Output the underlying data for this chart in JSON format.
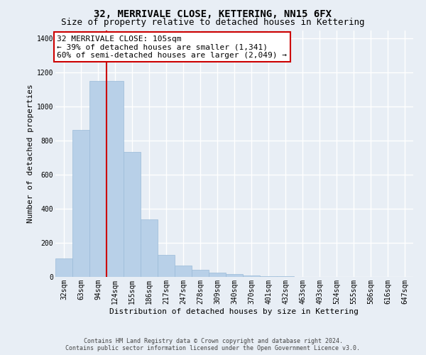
{
  "title": "32, MERRIVALE CLOSE, KETTERING, NN15 6FX",
  "subtitle": "Size of property relative to detached houses in Kettering",
  "xlabel": "Distribution of detached houses by size in Kettering",
  "ylabel": "Number of detached properties",
  "categories": [
    "32sqm",
    "63sqm",
    "94sqm",
    "124sqm",
    "155sqm",
    "186sqm",
    "217sqm",
    "247sqm",
    "278sqm",
    "309sqm",
    "340sqm",
    "370sqm",
    "401sqm",
    "432sqm",
    "463sqm",
    "493sqm",
    "524sqm",
    "555sqm",
    "586sqm",
    "616sqm",
    "647sqm"
  ],
  "values": [
    110,
    865,
    1150,
    1150,
    735,
    340,
    130,
    65,
    40,
    25,
    15,
    10,
    5,
    3,
    2,
    1,
    1,
    0,
    0,
    0,
    0
  ],
  "bar_color": "#b8d0e8",
  "bar_edgecolor": "#9bbbd8",
  "vline_color": "#cc0000",
  "vline_pos": 2.5,
  "annotation_lines": [
    "32 MERRIVALE CLOSE: 105sqm",
    "← 39% of detached houses are smaller (1,341)",
    "60% of semi-detached houses are larger (2,049) →"
  ],
  "annotation_box_edgecolor": "#cc0000",
  "ylim": [
    0,
    1450
  ],
  "yticks": [
    0,
    200,
    400,
    600,
    800,
    1000,
    1200,
    1400
  ],
  "bg_color": "#e8eef5",
  "grid_color": "#ffffff",
  "title_fontsize": 10,
  "subtitle_fontsize": 9,
  "axis_label_fontsize": 8,
  "tick_fontsize": 7,
  "annotation_fontsize": 8,
  "footer_text": "Contains HM Land Registry data © Crown copyright and database right 2024.\nContains public sector information licensed under the Open Government Licence v3.0."
}
